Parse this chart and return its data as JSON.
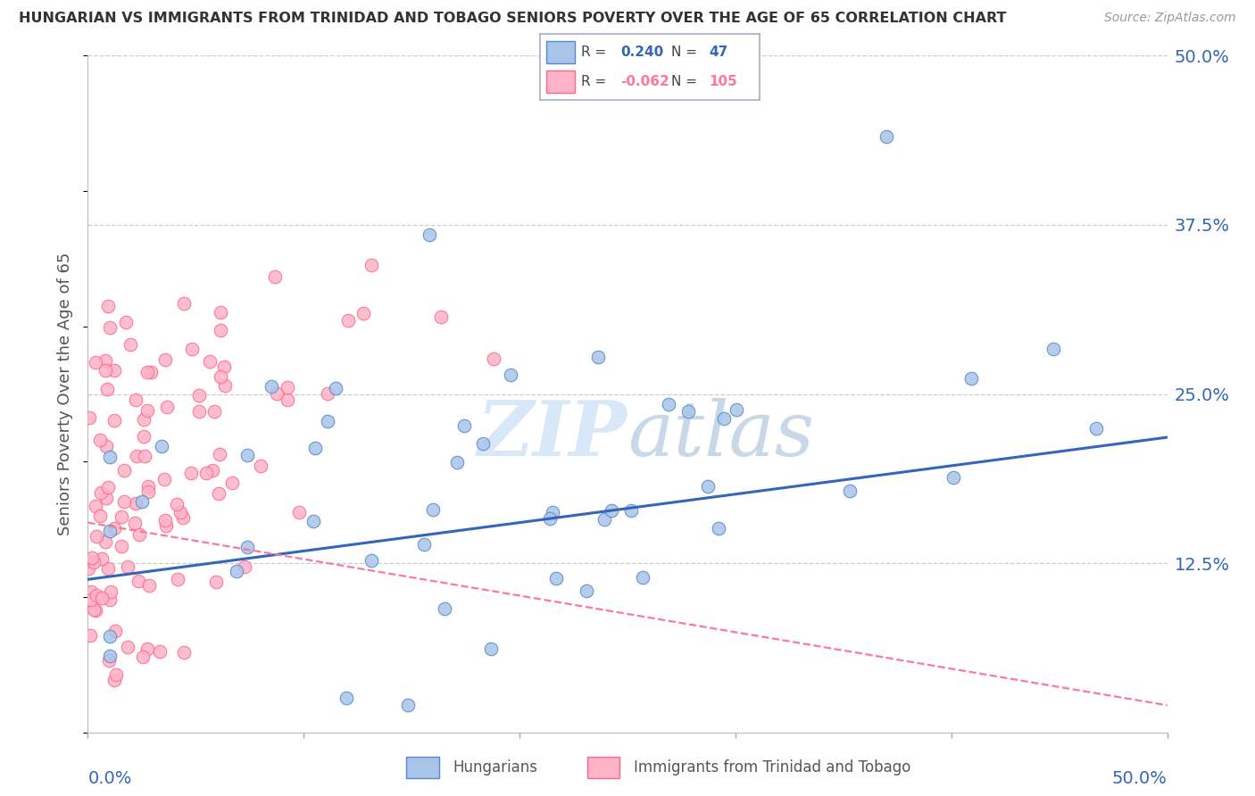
{
  "title": "HUNGARIAN VS IMMIGRANTS FROM TRINIDAD AND TOBAGO SENIORS POVERTY OVER THE AGE OF 65 CORRELATION CHART",
  "source": "Source: ZipAtlas.com",
  "ylabel": "Seniors Poverty Over the Age of 65",
  "legend1_label": "Hungarians",
  "legend2_label": "Immigrants from Trinidad and Tobago",
  "R1": "0.240",
  "N1": "47",
  "R2": "-0.062",
  "N2": "105",
  "color_hungarian_fill": "#A8C4E8",
  "color_hungarian_edge": "#5588CC",
  "color_tt_fill": "#FFB3C8",
  "color_tt_edge": "#FF6688",
  "color_hungarian_line": "#3366BB",
  "color_tt_line": "#FF7799",
  "watermark_color": "#DDEEFF",
  "xlim": [
    0.0,
    0.5
  ],
  "ylim": [
    0.0,
    0.5
  ],
  "ytick_vals": [
    0.125,
    0.25,
    0.375,
    0.5
  ],
  "ytick_labels": [
    "12.5%",
    "25.0%",
    "37.5%",
    "50.0%"
  ],
  "seed": 99
}
